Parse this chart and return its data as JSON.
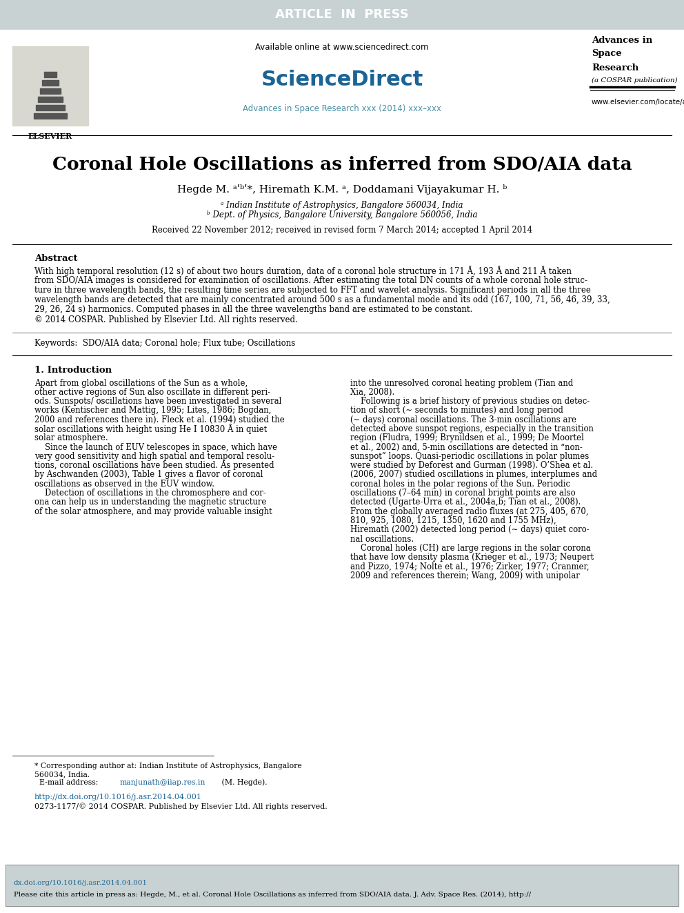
{
  "bg_color": "#ffffff",
  "header_bar_color": "#c8d2d2",
  "header_bar_text": "ARTICLE  IN  PRESS",
  "header_bar_text_color": "#ffffff",
  "sciencedirect_color": "#1a6496",
  "journal_link_color": "#4a90a4",
  "journal_link_text": "Advances in Space Research xxx (2014) xxx–xxx",
  "available_text": "Available online at www.sciencedirect.com",
  "sciencedirect_text": "ScienceDirect",
  "elsevier_text": "ELSEVIER",
  "advances_title_line1": "Advances in",
  "advances_title_line2": "Space",
  "advances_title_line3": "Research",
  "advances_title_line4": "(a COSPAR publication)",
  "advances_url": "www.elsevier.com/locate/asr",
  "paper_title": "Coronal Hole Oscillations as inferred from SDO/AIA data",
  "affil_a": "ᵃ Indian Institute of Astrophysics, Bangalore 560034, India",
  "affil_b": "ᵇ Dept. of Physics, Bangalore University, Bangalore 560056, India",
  "received_text": "Received 22 November 2012; received in revised form 7 March 2014; accepted 1 April 2014",
  "abstract_title": "Abstract",
  "copyright_text": "© 2014 COSPAR. Published by Elsevier Ltd. All rights reserved.",
  "keywords_text": "Keywords:  SDO/AIA data; Coronal hole; Flux tube; Oscillations",
  "section1_title": "1. Introduction",
  "footnote_doi": "http://dx.doi.org/10.1016/j.asr.2014.04.001",
  "footnote_issn": "0273-1177/© 2014 COSPAR. Published by Elsevier Ltd. All rights reserved.",
  "bottom_box_color": "#c8d2d2",
  "link_color": "#1a6496",
  "abstract_lines": [
    "With high temporal resolution (12 s) of about two hours duration, data of a coronal hole structure in 171 Å, 193 Å and 211 Å taken",
    "from SDO/AIA images is considered for examination of oscillations. After estimating the total DN counts of a whole coronal hole struc-",
    "ture in three wavelength bands, the resulting time series are subjected to FFT and wavelet analysis. Significant periods in all the three",
    "wavelength bands are detected that are mainly concentrated around 500 s as a fundamental mode and its odd (167, 100, 71, 56, 46, 39, 33,",
    "29, 26, 24 s) harmonics. Computed phases in all the three wavelengths band are estimated to be constant."
  ],
  "col1_lines": [
    "Apart from global oscillations of the Sun as a whole,",
    "other active regions of Sun also oscillate in different peri-",
    "ods. Sunspots/ oscillations have been investigated in several",
    "works (Kentischer and Mattig, 1995; Lites, 1986; Bogdan,",
    "2000 and references there in). Fleck et al. (1994) studied the",
    "solar oscillations with height using He I 10830 Å in quiet",
    "solar atmosphere.",
    "    Since the launch of EUV telescopes in space, which have",
    "very good sensitivity and high spatial and temporal resolu-",
    "tions, coronal oscillations have been studied. As presented",
    "by Aschwanden (2003), Table 1 gives a flavor of coronal",
    "oscillations as observed in the EUV window.",
    "    Detection of oscillations in the chromosphere and cor-",
    "ona can help us in understanding the magnetic structure",
    "of the solar atmosphere, and may provide valuable insight"
  ],
  "col2_lines": [
    "into the unresolved coronal heating problem (Tian and",
    "Xia, 2008).",
    "    Following is a brief history of previous studies on detec-",
    "tion of short (∼ seconds to minutes) and long period",
    "(∼ days) coronal oscillations. The 3-min oscillations are",
    "detected above sunspot regions, especially in the transition",
    "region (Fludra, 1999; Brynildsen et al., 1999; De Moortel",
    "et al., 2002) and, 5-min oscillations are detected in “non-",
    "sunspot” loops. Quasi-periodic oscillations in polar plumes",
    "were studied by Deforest and Gurman (1998). O’Shea et al.",
    "(2006, 2007) studied oscillations in plumes, interplumes and",
    "coronal holes in the polar regions of the Sun. Periodic",
    "oscillations (7–64 min) in coronal bright points are also",
    "detected (Ugarte-Urra et al., 2004a,b; Tian et al., 2008).",
    "From the globally averaged radio fluxes (at 275, 405, 670,",
    "810, 925, 1080, 1215, 1350, 1620 and 1755 MHz),",
    "Hiremath (2002) detected long period (∼ days) quiet coro-",
    "nal oscillations.",
    "    Coronal holes (CH) are large regions in the solar corona",
    "that have low density plasma (Krieger et al., 1973; Neupert",
    "and Pizzo, 1974; Nolte et al., 1976; Zirker, 1977; Cranmer,",
    "2009 and references therein; Wang, 2009) with unipolar"
  ]
}
